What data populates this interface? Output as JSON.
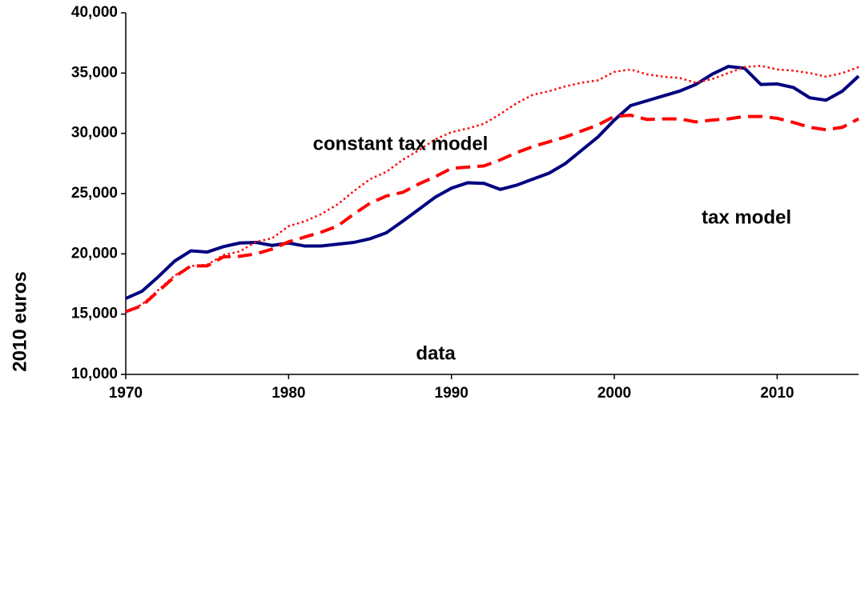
{
  "chart_data": {
    "type": "line",
    "ylabel": "2010 euros",
    "x": [
      1970,
      1971,
      1972,
      1973,
      1974,
      1975,
      1976,
      1977,
      1978,
      1979,
      1980,
      1981,
      1982,
      1983,
      1984,
      1985,
      1986,
      1987,
      1988,
      1989,
      1990,
      1991,
      1992,
      1993,
      1994,
      1995,
      1996,
      1997,
      1998,
      1999,
      2000,
      2001,
      2002,
      2003,
      2004,
      2005,
      2006,
      2007,
      2008,
      2009,
      2010,
      2011,
      2012,
      2013,
      2014,
      2015
    ],
    "series": [
      {
        "name": "data",
        "color": "#000080",
        "style": "solid",
        "values": [
          16300,
          16900,
          18100,
          19400,
          20250,
          20150,
          20600,
          20900,
          20950,
          20700,
          20900,
          20650,
          20650,
          20800,
          20950,
          21250,
          21750,
          22700,
          23700,
          24700,
          25450,
          25900,
          25850,
          25350,
          25700,
          26200,
          26700,
          27500,
          28600,
          29700,
          31100,
          32300,
          32700,
          33100,
          33500,
          34050,
          34900,
          35550,
          35400,
          34050,
          34100,
          33800,
          32950,
          32750,
          33500,
          34750
        ]
      },
      {
        "name": "tax model",
        "color": "#ff0000",
        "style": "dashed",
        "values": [
          15200,
          15700,
          16900,
          18100,
          19000,
          19000,
          19750,
          19800,
          20000,
          20400,
          21000,
          21400,
          21800,
          22300,
          23300,
          24200,
          24800,
          25100,
          25800,
          26400,
          27100,
          27200,
          27300,
          27800,
          28400,
          28900,
          29300,
          29700,
          30200,
          30700,
          31400,
          31500,
          31150,
          31200,
          31200,
          30950,
          31100,
          31200,
          31400,
          31400,
          31250,
          30900,
          30500,
          30300,
          30500,
          31200
        ]
      },
      {
        "name": "constant tax model",
        "color": "#ff0000",
        "style": "dotted",
        "values": [
          15200,
          15800,
          17000,
          18200,
          19000,
          19100,
          19900,
          20200,
          21000,
          21300,
          22300,
          22700,
          23300,
          24100,
          25200,
          26200,
          26800,
          27800,
          28600,
          29500,
          30100,
          30400,
          30800,
          31600,
          32500,
          33200,
          33500,
          33900,
          34200,
          34400,
          35100,
          35300,
          34900,
          34700,
          34600,
          34200,
          34500,
          35000,
          35500,
          35600,
          35300,
          35200,
          35000,
          34700,
          35000,
          35500
        ]
      }
    ],
    "xlim": [
      1970,
      2015
    ],
    "xticks": [
      1970,
      1980,
      1990,
      2000,
      2010
    ],
    "ylim": [
      10000,
      40000
    ],
    "yticks": [
      {
        "value": 10000,
        "label": "10,000"
      },
      {
        "value": 15000,
        "label": "15,000"
      },
      {
        "value": 20000,
        "label": "20,000"
      },
      {
        "value": 25000,
        "label": "25,000"
      },
      {
        "value": 30000,
        "label": "30,000"
      },
      {
        "value": 35000,
        "label": "35,000"
      },
      {
        "value": 40000,
        "label": "40,000"
      }
    ],
    "grid": false
  }
}
